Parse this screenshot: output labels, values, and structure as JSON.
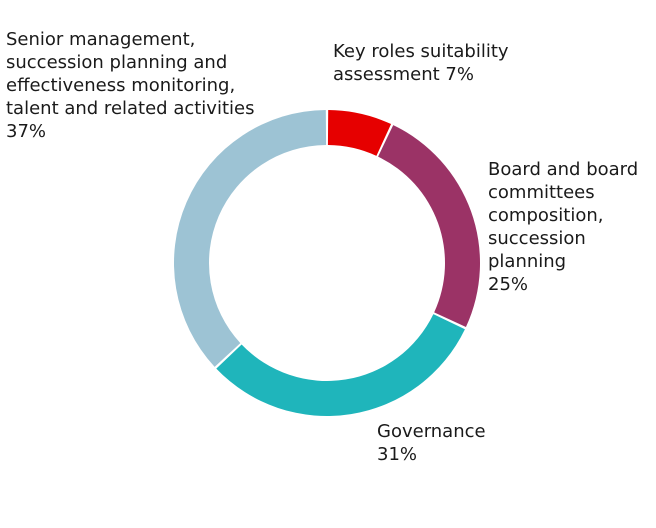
{
  "chart_data": {
    "type": "pie",
    "variant": "donut",
    "slices": [
      {
        "label": "Key roles suitability\nassessment  7%",
        "value": 7,
        "color": "#e60000"
      },
      {
        "label": "Board and board\ncommittees\ncomposition,\nsuccession\nplanning\n25%",
        "value": 25,
        "color": "#9b3366"
      },
      {
        "label": "Governance\n31%",
        "value": 31,
        "color": "#1fb5bb"
      },
      {
        "label": "Senior management,\nsuccession planning and\neffectiveness monitoring,\ntalent and related activities\n37%",
        "value": 37,
        "color": "#9dc3d4"
      }
    ]
  }
}
